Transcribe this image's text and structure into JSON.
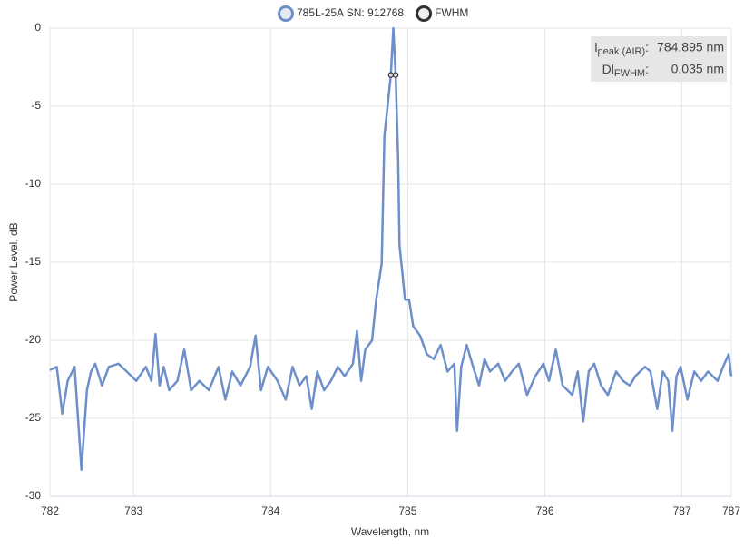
{
  "chart_data": {
    "type": "line",
    "x_label": "Wavelength, nm",
    "y_label": "Power Level, dB",
    "xlim": [
      782.39,
      787.36
    ],
    "xticks": [
      {
        "value": 782.39,
        "label": "782"
      },
      783,
      784,
      785,
      786,
      787,
      {
        "value": 787.36,
        "label": "787"
      }
    ],
    "ylim": [
      -30,
      0
    ],
    "yticks": [
      0,
      -5,
      -10,
      -15,
      -20,
      -25,
      -30
    ],
    "grid": true,
    "legend": "top",
    "series": [
      {
        "name": "785L-25A SN: 912768",
        "color": "#6d8fca",
        "x": [
          782.39,
          782.44,
          782.48,
          782.52,
          782.57,
          782.62,
          782.66,
          782.69,
          782.72,
          782.77,
          782.82,
          782.89,
          782.95,
          783.02,
          783.09,
          783.13,
          783.16,
          783.19,
          783.22,
          783.26,
          783.32,
          783.37,
          783.42,
          783.48,
          783.55,
          783.62,
          783.67,
          783.72,
          783.78,
          783.85,
          783.89,
          783.93,
          783.98,
          784.05,
          784.11,
          784.16,
          784.21,
          784.26,
          784.3,
          784.34,
          784.39,
          784.44,
          784.49,
          784.54,
          784.6,
          784.63,
          784.66,
          784.69,
          784.74,
          784.77,
          784.81,
          784.83,
          784.877,
          784.895,
          784.912,
          784.93,
          784.94,
          784.96,
          784.98,
          785.01,
          785.04,
          785.09,
          785.14,
          785.19,
          785.24,
          785.29,
          785.34,
          785.36,
          785.39,
          785.43,
          785.47,
          785.52,
          785.56,
          785.6,
          785.66,
          785.71,
          785.76,
          785.81,
          785.87,
          785.93,
          785.99,
          786.03,
          786.08,
          786.13,
          786.2,
          786.24,
          786.28,
          786.32,
          786.36,
          786.41,
          786.46,
          786.52,
          786.57,
          786.62,
          786.66,
          786.73,
          786.77,
          786.82,
          786.86,
          786.9,
          786.93,
          786.96,
          786.99,
          787.04,
          787.09,
          787.14,
          787.19,
          787.26,
          787.3,
          787.34,
          787.36
        ],
        "values": [
          -21.9,
          -21.7,
          -24.7,
          -22.6,
          -21.7,
          -28.3,
          -23.2,
          -22.0,
          -21.5,
          -22.9,
          -21.7,
          -21.5,
          -22.0,
          -22.6,
          -21.7,
          -22.6,
          -19.6,
          -22.9,
          -21.7,
          -23.2,
          -22.6,
          -20.6,
          -23.2,
          -22.6,
          -23.2,
          -21.7,
          -23.8,
          -22.0,
          -22.9,
          -21.7,
          -19.7,
          -23.2,
          -21.7,
          -22.6,
          -23.8,
          -21.7,
          -22.9,
          -22.3,
          -24.4,
          -22.0,
          -23.2,
          -22.6,
          -21.7,
          -22.3,
          -21.5,
          -19.4,
          -22.6,
          -20.6,
          -20.0,
          -17.4,
          -15.1,
          -6.9,
          -3.0,
          0,
          -3.0,
          -8.3,
          -13.9,
          -15.6,
          -17.4,
          -17.4,
          -19.1,
          -19.7,
          -20.9,
          -21.2,
          -20.3,
          -22.0,
          -21.5,
          -25.8,
          -21.7,
          -20.3,
          -21.5,
          -22.9,
          -21.2,
          -22.0,
          -21.5,
          -22.6,
          -22.0,
          -21.5,
          -23.5,
          -22.3,
          -21.5,
          -22.6,
          -20.6,
          -22.9,
          -23.5,
          -22.0,
          -25.2,
          -22.0,
          -21.5,
          -22.9,
          -23.5,
          -22.0,
          -22.6,
          -22.9,
          -22.3,
          -21.7,
          -22.0,
          -24.4,
          -22.0,
          -22.6,
          -25.8,
          -22.3,
          -21.7,
          -23.8,
          -22.0,
          -22.6,
          -22.0,
          -22.6,
          -21.7,
          -20.9,
          -22.3
        ]
      },
      {
        "name": "FWHM",
        "color": "#333333",
        "marker_only": true,
        "x": [
          784.877,
          784.912
        ],
        "values": [
          -3.0,
          -3.0
        ]
      }
    ],
    "annotations": [
      {
        "symbol": "l",
        "sub": "peak (AIR)",
        "sep": ":",
        "value": "784.895 nm"
      },
      {
        "symbol": "Dl",
        "sub": "FWHM",
        "sep": ":",
        "value": "0.035 nm"
      }
    ]
  }
}
